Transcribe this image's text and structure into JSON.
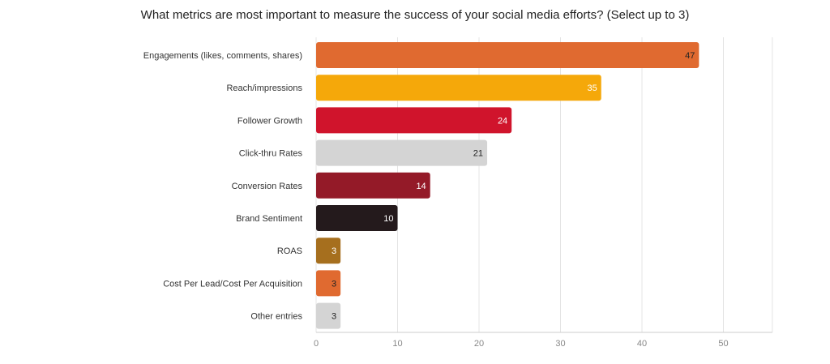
{
  "chart_data": {
    "type": "bar",
    "orientation": "horizontal",
    "title": "What metrics are most important to measure the success of your social media efforts? (Select up to 3)",
    "xlabel": "",
    "ylabel": "",
    "xlim": [
      0,
      56
    ],
    "x_ticks": [
      0,
      10,
      20,
      30,
      40,
      50
    ],
    "grid": "vertical",
    "categories": [
      "Engagements (likes, comments, shares)",
      "Reach/impressions",
      "Follower Growth",
      "Click-thru Rates",
      "Conversion Rates",
      "Brand Sentiment",
      "ROAS",
      "Cost Per Lead/Cost Per Acquisition",
      "Other entries"
    ],
    "values": [
      47,
      35,
      24,
      21,
      14,
      10,
      3,
      3,
      3
    ],
    "colors": [
      "#e06a30",
      "#f5a80a",
      "#d0142c",
      "#d4d4d4",
      "#941a28",
      "#241a1c",
      "#a66f1e",
      "#e06a30",
      "#d4d4d4"
    ],
    "label_colors": [
      "#222222",
      "#ffffff",
      "#ffffff",
      "#222222",
      "#ffffff",
      "#ffffff",
      "#ffffff",
      "#222222",
      "#222222"
    ]
  }
}
